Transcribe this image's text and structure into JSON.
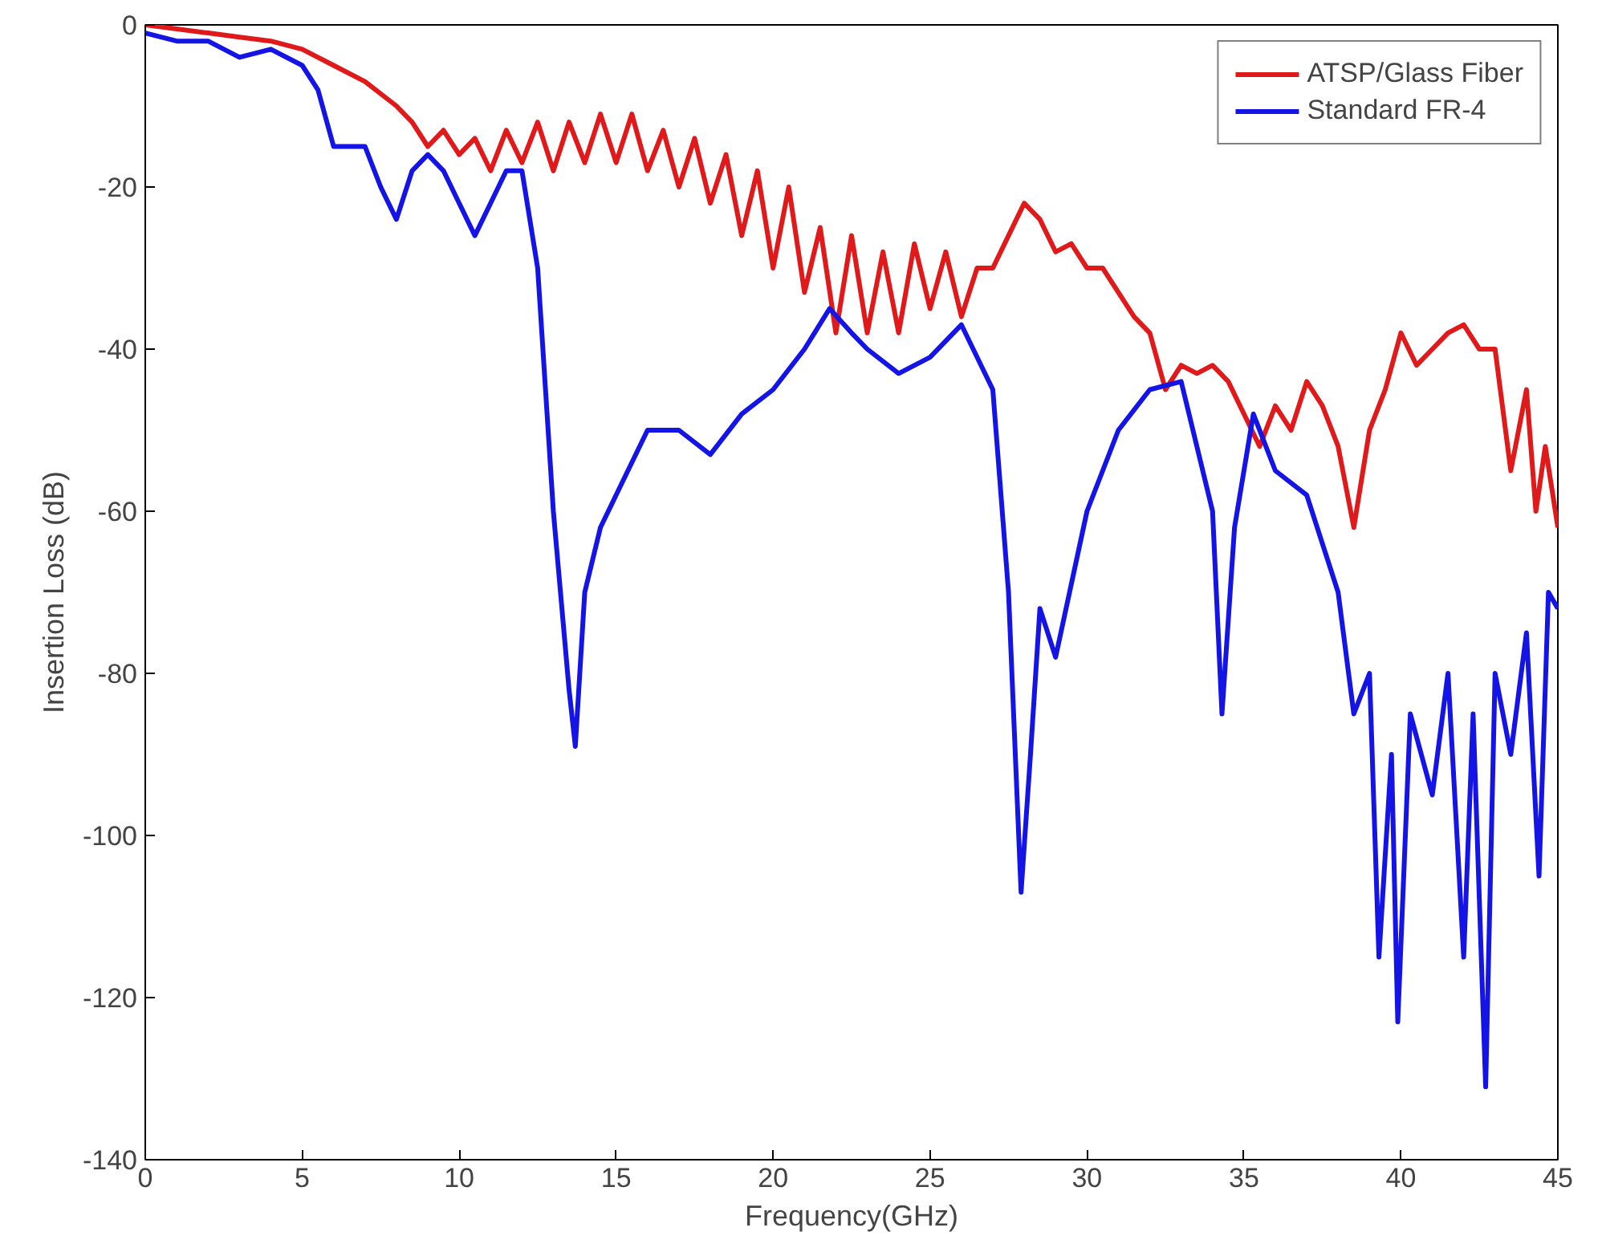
{
  "chart_data": {
    "type": "line",
    "xlabel": "Frequency(GHz)",
    "ylabel": "Insertion Loss (dB)",
    "xlim": [
      0,
      45
    ],
    "ylim": [
      -140,
      0
    ],
    "xticks": [
      0,
      5,
      10,
      15,
      20,
      25,
      30,
      35,
      40,
      45
    ],
    "yticks": [
      -140,
      -120,
      -100,
      -80,
      -60,
      -40,
      -20,
      0
    ],
    "grid": false,
    "legend": "top right",
    "line_style": "solid",
    "series": [
      {
        "name": "ATSP/Glass Fiber",
        "color": "#e0191b",
        "x": [
          0,
          1,
          2,
          3,
          4,
          5,
          6,
          7,
          8,
          8.5,
          9,
          9.5,
          10,
          10.5,
          11,
          11.5,
          12,
          12.5,
          13,
          13.5,
          14,
          14.5,
          15,
          15.5,
          16,
          16.5,
          17,
          17.5,
          18,
          18.5,
          19,
          19.5,
          20,
          20.5,
          21,
          21.5,
          22,
          22.5,
          23,
          23.5,
          24,
          24.5,
          25,
          25.5,
          26,
          26.5,
          27,
          27.5,
          28,
          28.5,
          29,
          29.5,
          30,
          30.5,
          31,
          31.5,
          32,
          32.5,
          33,
          33.5,
          34,
          34.5,
          35,
          35.5,
          36,
          36.5,
          37,
          37.5,
          38,
          38.5,
          39,
          39.5,
          40,
          40.5,
          41,
          41.5,
          42,
          42.5,
          43,
          43.5,
          44,
          44.3,
          44.6,
          45
        ],
        "values": [
          0,
          -0.5,
          -1,
          -1.5,
          -2,
          -3,
          -5,
          -7,
          -10,
          -12,
          -15,
          -13,
          -16,
          -14,
          -18,
          -13,
          -17,
          -12,
          -18,
          -12,
          -17,
          -11,
          -17,
          -11,
          -18,
          -13,
          -20,
          -14,
          -22,
          -16,
          -26,
          -18,
          -30,
          -20,
          -33,
          -25,
          -38,
          -26,
          -38,
          -28,
          -38,
          -27,
          -35,
          -28,
          -36,
          -30,
          -30,
          -26,
          -22,
          -24,
          -28,
          -27,
          -30,
          -30,
          -33,
          -36,
          -38,
          -45,
          -42,
          -43,
          -42,
          -44,
          -48,
          -52,
          -47,
          -50,
          -44,
          -47,
          -52,
          -62,
          -50,
          -45,
          -38,
          -42,
          -40,
          -38,
          -37,
          -40,
          -40,
          -55,
          -45,
          -60,
          -52,
          -62
        ]
      },
      {
        "name": "Standard FR-4",
        "color": "#1414e6",
        "x": [
          0,
          1,
          2,
          3,
          4,
          5,
          5.5,
          6,
          7,
          7.5,
          8,
          8.5,
          9,
          9.5,
          10,
          10.5,
          11,
          11.5,
          12,
          12.5,
          13,
          13.5,
          13.7,
          14,
          14.5,
          15,
          16,
          17,
          18,
          19,
          20,
          21,
          21.8,
          22.5,
          23,
          24,
          25,
          26,
          27,
          27.5,
          27.9,
          28.2,
          28.5,
          29,
          30,
          31,
          32,
          33,
          34,
          34.3,
          34.7,
          35.3,
          36,
          37,
          38,
          38.5,
          39,
          39.3,
          39.7,
          39.9,
          40.3,
          41,
          41.5,
          42,
          42.3,
          42.7,
          43,
          43.5,
          44,
          44.4,
          44.7,
          45
        ],
        "values": [
          -1,
          -2,
          -2,
          -4,
          -3,
          -5,
          -8,
          -15,
          -15,
          -20,
          -24,
          -18,
          -16,
          -18,
          -22,
          -26,
          -22,
          -18,
          -18,
          -30,
          -60,
          -82,
          -89,
          -70,
          -62,
          -58,
          -50,
          -50,
          -53,
          -48,
          -45,
          -40,
          -35,
          -38,
          -40,
          -43,
          -41,
          -37,
          -45,
          -70,
          -107,
          -90,
          -72,
          -78,
          -60,
          -50,
          -45,
          -44,
          -60,
          -85,
          -62,
          -48,
          -55,
          -58,
          -70,
          -85,
          -80,
          -115,
          -90,
          -123,
          -85,
          -95,
          -80,
          -115,
          -85,
          -131,
          -80,
          -90,
          -75,
          -105,
          -70,
          -72
        ]
      }
    ]
  }
}
